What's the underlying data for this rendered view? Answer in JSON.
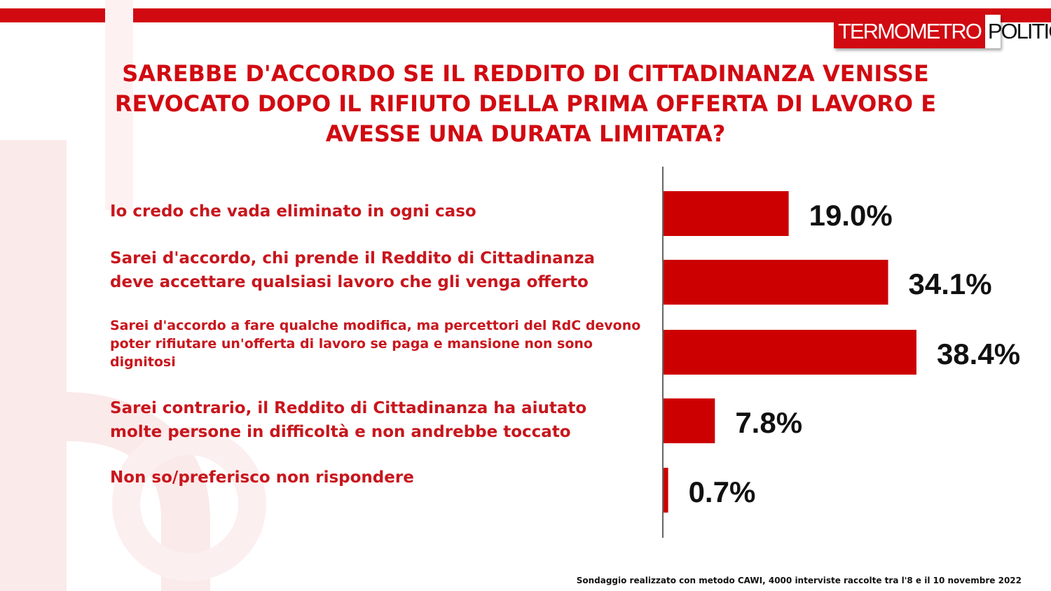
{
  "header": {
    "logo_part1": "TERMOMETRO",
    "logo_part2": "POLITICO",
    "brand_color": "#d10a11"
  },
  "chart_data": {
    "type": "bar",
    "orientation": "horizontal",
    "title": "SAREBBE D'ACCORDO SE IL REDDITO DI CITTADINANZA VENISSE REVOCATO DOPO IL RIFIUTO DELLA PRIMA OFFERTA DI LAVORO E AVESSE UNA DURATA LIMITATA?",
    "categories": [
      "Io credo che vada eliminato in ogni caso",
      "Sarei d'accordo, chi prende il Reddito di Cittadinanza deve accettare qualsiasi lavoro che gli venga offerto",
      "Sarei d'accordo a fare qualche modifica, ma percettori del RdC devono poter rifiutare un'offerta di lavoro se paga e mansione non sono dignitosi",
      "Sarei contrario, il Reddito di Cittadinanza ha aiutato molte persone in difficoltà  e non andrebbe toccato",
      "Non so/preferisco non rispondere"
    ],
    "values": [
      19.0,
      34.1,
      38.4,
      7.8,
      0.7
    ],
    "labels": [
      "19.0%",
      "34.1%",
      "38.4%",
      "7.8%",
      "0.7%"
    ],
    "unit": "%",
    "bar_color": "#cc0000",
    "grid": false,
    "legend": "none"
  },
  "footer": {
    "note": "Sondaggio realizzato con metodo CAWI, 4000 interviste raccolte tra l'8 e il 10 novembre 2022"
  }
}
